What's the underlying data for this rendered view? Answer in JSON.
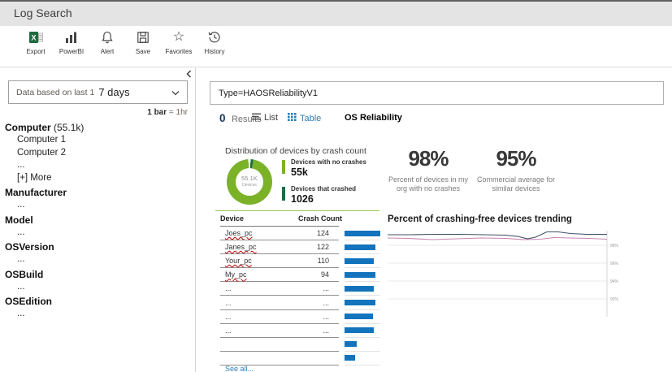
{
  "header": {
    "title": "Log Search"
  },
  "toolbar": {
    "buttons": [
      {
        "label": "Export"
      },
      {
        "label": "PowerBI"
      },
      {
        "label": "Alert"
      },
      {
        "label": "Save"
      },
      {
        "label": "Favorites"
      },
      {
        "label": "History"
      }
    ]
  },
  "left_panel": {
    "time_range": {
      "prefix": "Data based on last 1",
      "value": "7 days"
    },
    "bar_note": {
      "bold": "1 bar",
      "rest": "= 1hr"
    },
    "facets": [
      {
        "label": "Computer",
        "count": "(55.1k)",
        "items": [
          "Computer 1",
          "Computer 2",
          "...",
          "[+] More"
        ]
      },
      {
        "label": "Manufacturer",
        "items": [
          "..."
        ]
      },
      {
        "label": "Model",
        "items": [
          "..."
        ]
      },
      {
        "label": "OSVersion",
        "items": [
          "..."
        ]
      },
      {
        "label": "OSBuild",
        "items": [
          "..."
        ]
      },
      {
        "label": "OSEdition",
        "items": [
          "..."
        ]
      }
    ]
  },
  "search": {
    "query": "Type=HAOSReliabilityV1"
  },
  "results_bar": {
    "count": "0",
    "count_label": "Results",
    "list_label": "List",
    "table_label": "Table",
    "tab_label": "OS Reliability"
  },
  "distribution": {
    "title": "Distribution of devices by crash count",
    "donut": {
      "center_value": "55.1K",
      "center_label": "Devices",
      "no_crash_deg": 347,
      "crashed_deg": 7
    },
    "legend": [
      {
        "label": "Devices with no crashes",
        "value": "55k",
        "color": "#7cb228"
      },
      {
        "label": "Devices that crashed",
        "value": "1026",
        "color": "#1b6e42"
      }
    ]
  },
  "stats": [
    {
      "value": "98%",
      "caption": "Percent of devices in my org with no crashes"
    },
    {
      "value": "95%",
      "caption": "Commercial average  for similar devices"
    }
  ],
  "device_table": {
    "columns": [
      "Device",
      "Crash Count"
    ],
    "rows": [
      {
        "device": "Joes_pc",
        "count": "124",
        "bar_pct": 100
      },
      {
        "device": "Janes_pc",
        "count": "122",
        "bar_pct": 87
      },
      {
        "device": "Your_pc",
        "count": "110",
        "bar_pct": 82
      },
      {
        "device": "My_pc",
        "count": "94",
        "bar_pct": 86
      },
      {
        "device": "...",
        "count": "...",
        "bar_pct": 82
      },
      {
        "device": "...",
        "count": "...",
        "bar_pct": 86
      },
      {
        "device": "...",
        "count": "...",
        "bar_pct": 79
      },
      {
        "device": "...",
        "count": "...",
        "bar_pct": 82
      },
      {
        "device": "",
        "count": "",
        "bar_pct": 34
      },
      {
        "device": "",
        "count": "",
        "bar_pct": 30
      }
    ],
    "see_all": "See all...",
    "bar_color": "#1373bc"
  },
  "trend_chart": {
    "title": "Percent of crashing-free devices trending",
    "y_ticks": [
      "98%",
      "96%",
      "94%",
      "92%"
    ],
    "series": [
      {
        "name": "my org",
        "color": "#3f4f68",
        "points": [
          [
            0,
            9
          ],
          [
            30,
            9
          ],
          [
            60,
            8.5
          ],
          [
            90,
            8.5
          ],
          [
            120,
            9
          ],
          [
            145,
            9.5
          ],
          [
            160,
            11
          ],
          [
            172,
            14
          ],
          [
            182,
            12
          ],
          [
            196,
            5.5
          ],
          [
            210,
            5.5
          ],
          [
            225,
            7.5
          ],
          [
            245,
            8.5
          ],
          [
            270,
            8.5
          ]
        ]
      },
      {
        "name": "commercial average",
        "color": "#c985b2",
        "points": [
          [
            0,
            13
          ],
          [
            25,
            13.5
          ],
          [
            55,
            15
          ],
          [
            85,
            14
          ],
          [
            115,
            13
          ],
          [
            145,
            13.5
          ],
          [
            168,
            15
          ],
          [
            188,
            14.5
          ],
          [
            205,
            12.5
          ],
          [
            225,
            13
          ],
          [
            248,
            13.5
          ],
          [
            270,
            14.5
          ]
        ]
      }
    ]
  }
}
